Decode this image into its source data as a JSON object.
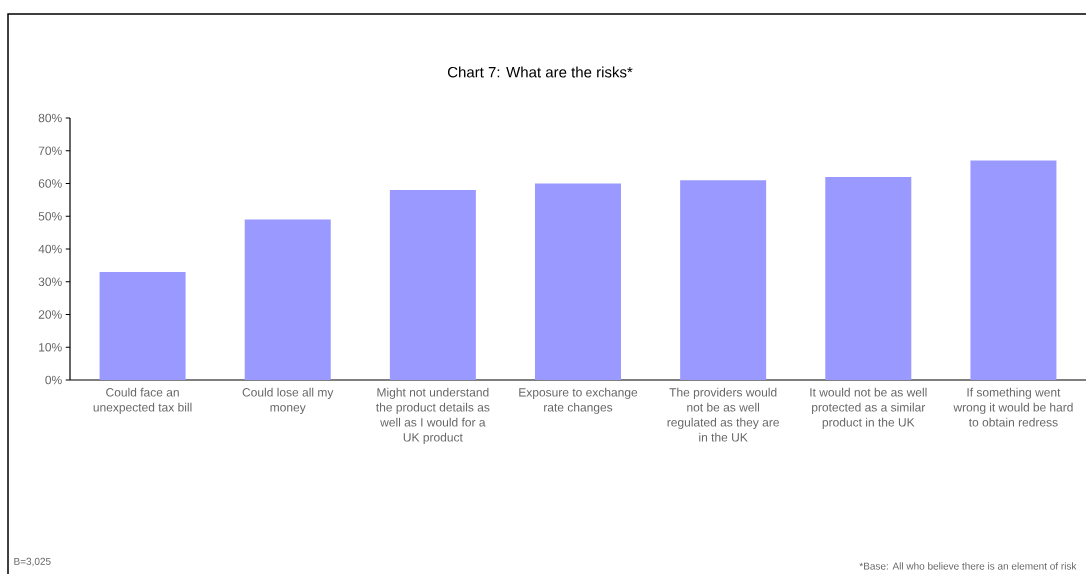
{
  "chart_data": {
    "type": "bar",
    "title": "Chart 7: What are the risks*",
    "categories": [
      "Could face an unexpected tax bill",
      "Could lose all my money",
      "Might not understand the product details as well as I would for a UK product",
      "Exposure to exchange rate changes",
      "The providers would not be as well regulated as they are in the UK",
      "It would not be as well protected as a similar product in the UK",
      "If something went wrong it would be hard to obtain redress"
    ],
    "values": [
      33,
      49,
      58,
      60,
      61,
      62,
      67
    ],
    "color": "#9999ff",
    "ylim": [
      0,
      80
    ],
    "yticks": [
      {
        "value": 0,
        "label": "0%"
      },
      {
        "value": 10,
        "label": "10%"
      },
      {
        "value": 20,
        "label": "20%"
      },
      {
        "value": 30,
        "label": "30%"
      },
      {
        "value": 40,
        "label": "40%"
      },
      {
        "value": 50,
        "label": "50%"
      },
      {
        "value": 60,
        "label": "60%"
      },
      {
        "value": 70,
        "label": "70%"
      },
      {
        "value": 80,
        "label": "80%"
      }
    ],
    "grid": false,
    "annotations": [
      "B=3,025",
      "*Base: All who believe there is an element of risk"
    ]
  }
}
